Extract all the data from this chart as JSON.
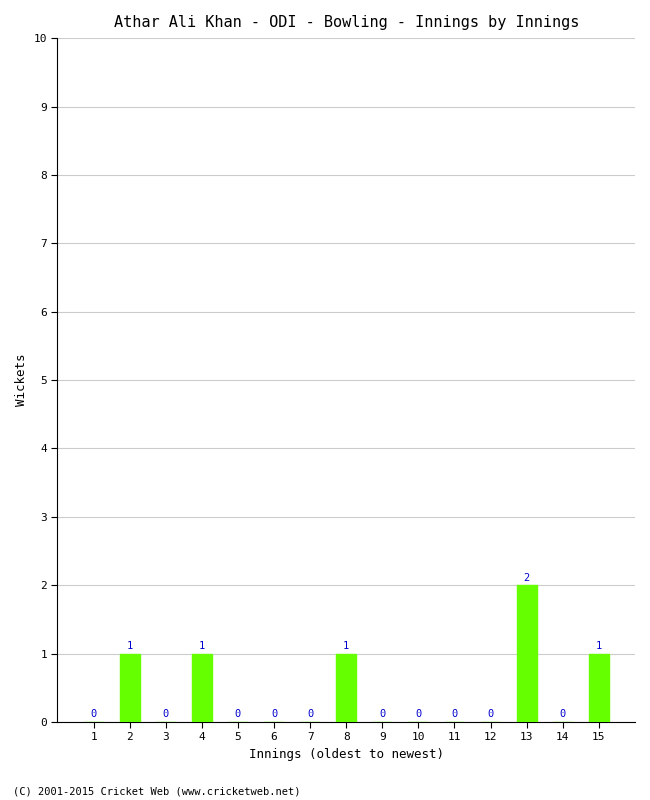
{
  "title": "Athar Ali Khan - ODI - Bowling - Innings by Innings",
  "xlabel": "Innings (oldest to newest)",
  "ylabel": "Wickets",
  "innings": [
    1,
    2,
    3,
    4,
    5,
    6,
    7,
    8,
    9,
    10,
    11,
    12,
    13,
    14,
    15
  ],
  "wickets": [
    0,
    1,
    0,
    1,
    0,
    0,
    0,
    1,
    0,
    0,
    0,
    0,
    2,
    0,
    1
  ],
  "bar_color": "#66ff00",
  "bar_edge_color": "#66ff00",
  "label_color": "#0000cc",
  "ylim": [
    0,
    10
  ],
  "yticks": [
    0,
    1,
    2,
    3,
    4,
    5,
    6,
    7,
    8,
    9,
    10
  ],
  "background_color": "#ffffff",
  "grid_color": "#cccccc",
  "title_fontsize": 11,
  "axis_label_fontsize": 9,
  "tick_fontsize": 8,
  "annotation_fontsize": 7.5,
  "footer_text": "(C) 2001-2015 Cricket Web (www.cricketweb.net)",
  "footer_fontsize": 7.5
}
